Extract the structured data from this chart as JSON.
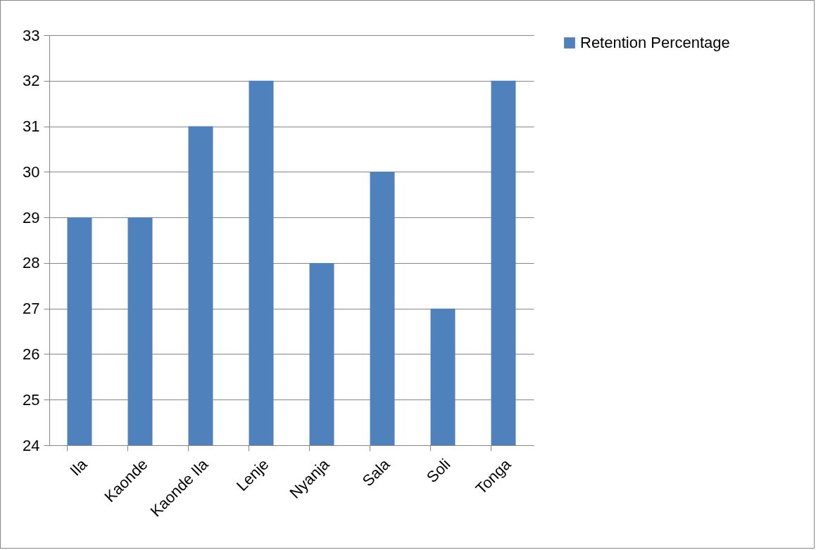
{
  "chart_data": {
    "type": "bar",
    "categories": [
      "Ila",
      "Kaonde",
      "Kaonde Ila",
      "Lenje",
      "Nyanja",
      "Sala",
      "Soli",
      "Tonga"
    ],
    "series": [
      {
        "name": "Retention Percentage",
        "color": "#4f81bd",
        "values": [
          29,
          29,
          31,
          32,
          28,
          30,
          27,
          32
        ]
      }
    ],
    "ylim": [
      24,
      33
    ],
    "yticks": [
      24,
      25,
      26,
      27,
      28,
      29,
      30,
      31,
      32,
      33
    ],
    "grid": "y",
    "legend": "right"
  }
}
